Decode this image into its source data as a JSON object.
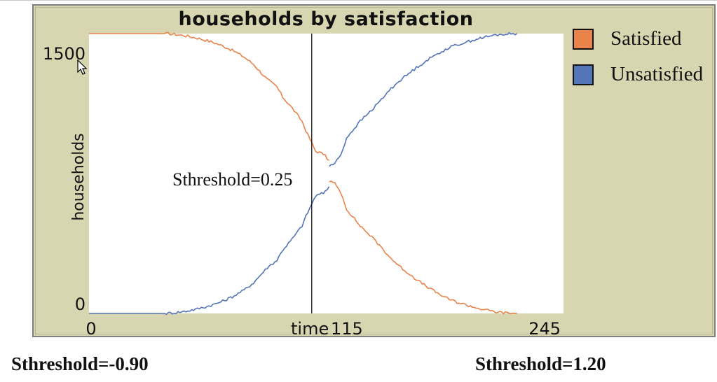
{
  "window": {
    "caption_left": "Sthreshold=-0.90",
    "caption_right": "Sthreshold=1.20"
  },
  "chart_data": {
    "type": "line",
    "title": "households by satisfaction",
    "xlabel": "time",
    "ylabel": "households",
    "xlim": [
      0,
      245
    ],
    "ylim": [
      0,
      1500
    ],
    "x_ticks": [
      "0",
      "245"
    ],
    "y_ticks": [
      "1500",
      "0"
    ],
    "marker": {
      "x": 115,
      "label": "115"
    },
    "annotation": "Sthreshold=0.25",
    "legend_position": "right",
    "grid": false,
    "series": [
      {
        "name": "Satisfied",
        "color": "#e8834a",
        "segments": [
          [
            [
              0,
              1500
            ],
            [
              40,
              1500
            ],
            [
              45,
              1495
            ],
            [
              50,
              1488
            ],
            [
              55,
              1478
            ],
            [
              60,
              1465
            ],
            [
              65,
              1450
            ],
            [
              70,
              1430
            ],
            [
              75,
              1405
            ],
            [
              80,
              1375
            ],
            [
              85,
              1335
            ],
            [
              88,
              1300
            ],
            [
              92,
              1255
            ],
            [
              97,
              1215
            ],
            [
              100,
              1160
            ],
            [
              105,
              1100
            ],
            [
              110,
              1030
            ],
            [
              112,
              980
            ],
            [
              117,
              870
            ],
            [
              121,
              855
            ],
            [
              124,
              820
            ]
          ],
          [
            [
              124,
              710
            ],
            [
              127,
              695
            ],
            [
              130,
              650
            ],
            [
              133,
              560
            ],
            [
              136,
              520
            ],
            [
              140,
              470
            ],
            [
              145,
              420
            ],
            [
              150,
              365
            ],
            [
              155,
              305
            ],
            [
              160,
              255
            ],
            [
              165,
              215
            ],
            [
              170,
              175
            ],
            [
              175,
              140
            ],
            [
              180,
              108
            ],
            [
              185,
              80
            ],
            [
              190,
              60
            ],
            [
              195,
              45
            ],
            [
              200,
              30
            ],
            [
              205,
              18
            ],
            [
              210,
              8
            ],
            [
              215,
              3
            ],
            [
              221,
              0
            ]
          ]
        ]
      },
      {
        "name": "Unsatisfied",
        "color": "#5474b8",
        "segments": [
          [
            [
              0,
              0
            ],
            [
              40,
              0
            ],
            [
              45,
              5
            ],
            [
              50,
              12
            ],
            [
              55,
              22
            ],
            [
              60,
              35
            ],
            [
              65,
              50
            ],
            [
              70,
              70
            ],
            [
              75,
              95
            ],
            [
              80,
              125
            ],
            [
              85,
              165
            ],
            [
              88,
              200
            ],
            [
              92,
              245
            ],
            [
              97,
              285
            ],
            [
              100,
              340
            ],
            [
              105,
              400
            ],
            [
              110,
              470
            ],
            [
              112,
              520
            ],
            [
              117,
              630
            ],
            [
              121,
              645
            ],
            [
              124,
              680
            ]
          ],
          [
            [
              124,
              790
            ],
            [
              127,
              805
            ],
            [
              130,
              850
            ],
            [
              133,
              940
            ],
            [
              136,
              980
            ],
            [
              140,
              1030
            ],
            [
              145,
              1080
            ],
            [
              150,
              1135
            ],
            [
              155,
              1195
            ],
            [
              160,
              1245
            ],
            [
              165,
              1285
            ],
            [
              170,
              1325
            ],
            [
              175,
              1360
            ],
            [
              180,
              1392
            ],
            [
              185,
              1420
            ],
            [
              190,
              1440
            ],
            [
              195,
              1455
            ],
            [
              200,
              1470
            ],
            [
              205,
              1482
            ],
            [
              210,
              1492
            ],
            [
              215,
              1497
            ],
            [
              221,
              1500
            ]
          ]
        ]
      }
    ]
  }
}
